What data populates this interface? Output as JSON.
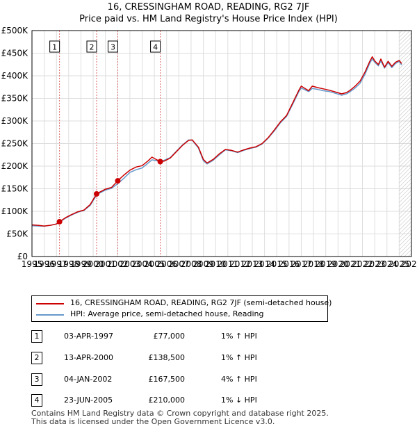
{
  "chart_data": {
    "type": "line",
    "title": "16, CRESSINGHAM ROAD, READING, RG2 7JF",
    "subtitle": "Price paid vs. HM Land Registry's House Price Index (HPI)",
    "xlabel": "",
    "ylabel": "",
    "xlim": [
      1995,
      2026
    ],
    "ylim": [
      0,
      500000
    ],
    "x_ticks": [
      1995,
      1996,
      1997,
      1998,
      1999,
      2000,
      2001,
      2002,
      2003,
      2004,
      2005,
      2006,
      2007,
      2008,
      2009,
      2010,
      2011,
      2012,
      2013,
      2014,
      2015,
      2016,
      2017,
      2018,
      2019,
      2020,
      2021,
      2022,
      2023,
      2024,
      2025,
      2026
    ],
    "y_ticks": [
      {
        "value": 0,
        "label": "£0"
      },
      {
        "value": 50000,
        "label": "£50K"
      },
      {
        "value": 100000,
        "label": "£100K"
      },
      {
        "value": 150000,
        "label": "£150K"
      },
      {
        "value": 200000,
        "label": "£200K"
      },
      {
        "value": 250000,
        "label": "£250K"
      },
      {
        "value": 300000,
        "label": "£300K"
      },
      {
        "value": 350000,
        "label": "£350K"
      },
      {
        "value": 400000,
        "label": "£400K"
      },
      {
        "value": 450000,
        "label": "£450K"
      },
      {
        "value": 500000,
        "label": "£500K"
      }
    ],
    "hatch_from_year": 2025.0,
    "series": [
      {
        "name": "16, CRESSINGHAM ROAD, READING, RG2 7JF (semi-detached house)",
        "color": "#cc0000",
        "points": [
          [
            1995.0,
            70000
          ],
          [
            1995.5,
            69000
          ],
          [
            1996.0,
            67500
          ],
          [
            1996.5,
            69000
          ],
          [
            1997.0,
            72000
          ],
          [
            1997.25,
            77000
          ],
          [
            1997.75,
            86000
          ],
          [
            1998.25,
            93000
          ],
          [
            1998.75,
            99000
          ],
          [
            1999.25,
            103000
          ],
          [
            1999.75,
            115000
          ],
          [
            2000.28,
            138500
          ],
          [
            2000.5,
            142000
          ],
          [
            2001.0,
            149000
          ],
          [
            2001.5,
            153000
          ],
          [
            2002.0,
            167500
          ],
          [
            2002.5,
            180000
          ],
          [
            2003.0,
            191000
          ],
          [
            2003.5,
            198000
          ],
          [
            2004.0,
            201000
          ],
          [
            2004.5,
            212000
          ],
          [
            2004.8,
            220000
          ],
          [
            2005.2,
            214000
          ],
          [
            2005.48,
            210000
          ],
          [
            2005.8,
            211000
          ],
          [
            2006.3,
            218000
          ],
          [
            2006.8,
            232000
          ],
          [
            2007.3,
            246000
          ],
          [
            2007.8,
            257000
          ],
          [
            2008.1,
            258000
          ],
          [
            2008.6,
            242000
          ],
          [
            2009.0,
            215000
          ],
          [
            2009.3,
            207000
          ],
          [
            2009.8,
            215000
          ],
          [
            2010.3,
            227000
          ],
          [
            2010.8,
            237000
          ],
          [
            2011.3,
            235000
          ],
          [
            2011.8,
            231000
          ],
          [
            2012.3,
            236000
          ],
          [
            2012.8,
            240000
          ],
          [
            2013.3,
            243000
          ],
          [
            2013.8,
            250000
          ],
          [
            2014.3,
            263000
          ],
          [
            2014.8,
            280000
          ],
          [
            2015.3,
            298000
          ],
          [
            2015.8,
            312000
          ],
          [
            2016.3,
            340000
          ],
          [
            2016.8,
            368000
          ],
          [
            2017.0,
            377000
          ],
          [
            2017.3,
            372000
          ],
          [
            2017.6,
            367000
          ],
          [
            2017.9,
            377000
          ],
          [
            2018.3,
            374000
          ],
          [
            2018.8,
            371000
          ],
          [
            2019.3,
            368000
          ],
          [
            2019.8,
            364000
          ],
          [
            2020.3,
            360000
          ],
          [
            2020.7,
            363000
          ],
          [
            2021.0,
            368000
          ],
          [
            2021.4,
            377000
          ],
          [
            2021.8,
            388000
          ],
          [
            2022.2,
            408000
          ],
          [
            2022.6,
            432000
          ],
          [
            2022.8,
            442000
          ],
          [
            2023.0,
            433000
          ],
          [
            2023.3,
            425000
          ],
          [
            2023.5,
            437000
          ],
          [
            2023.8,
            419000
          ],
          [
            2024.1,
            432000
          ],
          [
            2024.4,
            421000
          ],
          [
            2024.7,
            430000
          ],
          [
            2025.0,
            434000
          ],
          [
            2025.2,
            427000
          ]
        ]
      },
      {
        "name": "HPI: Average price, semi-detached house, Reading",
        "color": "#6699cc",
        "points": [
          [
            1995.0,
            68000
          ],
          [
            1995.5,
            67500
          ],
          [
            1996.0,
            67000
          ],
          [
            1996.5,
            69000
          ],
          [
            1997.0,
            72000
          ],
          [
            1997.25,
            76000
          ],
          [
            1997.75,
            85000
          ],
          [
            1998.25,
            92000
          ],
          [
            1998.75,
            98000
          ],
          [
            1999.25,
            102000
          ],
          [
            1999.75,
            113000
          ],
          [
            2000.28,
            136000
          ],
          [
            2000.5,
            140000
          ],
          [
            2001.0,
            147000
          ],
          [
            2001.5,
            151000
          ],
          [
            2002.0,
            161000
          ],
          [
            2002.5,
            173000
          ],
          [
            2003.0,
            186000
          ],
          [
            2003.5,
            192000
          ],
          [
            2004.0,
            196000
          ],
          [
            2004.5,
            207000
          ],
          [
            2004.8,
            214000
          ],
          [
            2005.2,
            212000
          ],
          [
            2005.48,
            212000
          ],
          [
            2005.8,
            213000
          ],
          [
            2006.3,
            219000
          ],
          [
            2006.8,
            233000
          ],
          [
            2007.3,
            247000
          ],
          [
            2007.8,
            258000
          ],
          [
            2008.1,
            257000
          ],
          [
            2008.6,
            240000
          ],
          [
            2009.0,
            212000
          ],
          [
            2009.3,
            205000
          ],
          [
            2009.8,
            213000
          ],
          [
            2010.3,
            225000
          ],
          [
            2010.8,
            236000
          ],
          [
            2011.3,
            234000
          ],
          [
            2011.8,
            230000
          ],
          [
            2012.3,
            235000
          ],
          [
            2012.8,
            239000
          ],
          [
            2013.3,
            242000
          ],
          [
            2013.8,
            249000
          ],
          [
            2014.3,
            262000
          ],
          [
            2014.8,
            278000
          ],
          [
            2015.3,
            296000
          ],
          [
            2015.8,
            310000
          ],
          [
            2016.3,
            337000
          ],
          [
            2016.8,
            365000
          ],
          [
            2017.0,
            373000
          ],
          [
            2017.3,
            369000
          ],
          [
            2017.6,
            365000
          ],
          [
            2017.9,
            372000
          ],
          [
            2018.3,
            370000
          ],
          [
            2018.8,
            367000
          ],
          [
            2019.3,
            365000
          ],
          [
            2019.8,
            361000
          ],
          [
            2020.3,
            357000
          ],
          [
            2020.7,
            360000
          ],
          [
            2021.0,
            365000
          ],
          [
            2021.4,
            373000
          ],
          [
            2021.8,
            383000
          ],
          [
            2022.2,
            403000
          ],
          [
            2022.6,
            428000
          ],
          [
            2022.8,
            437000
          ],
          [
            2023.0,
            430000
          ],
          [
            2023.3,
            422000
          ],
          [
            2023.5,
            433000
          ],
          [
            2023.8,
            417000
          ],
          [
            2024.1,
            429000
          ],
          [
            2024.4,
            418000
          ],
          [
            2024.7,
            427000
          ],
          [
            2025.0,
            432000
          ],
          [
            2025.2,
            424000
          ]
        ]
      }
    ],
    "sales": [
      {
        "marker": "1",
        "year": 1997.25,
        "price": 77000
      },
      {
        "marker": "2",
        "year": 2000.28,
        "price": 138500
      },
      {
        "marker": "3",
        "year": 2002.01,
        "price": 167500
      },
      {
        "marker": "4",
        "year": 2005.48,
        "price": 210000
      }
    ]
  },
  "transactions": [
    {
      "marker": "1",
      "date": "03-APR-1997",
      "price": "£77,000",
      "hpi": "1% ↑ HPI"
    },
    {
      "marker": "2",
      "date": "13-APR-2000",
      "price": "£138,500",
      "hpi": "1% ↑ HPI"
    },
    {
      "marker": "3",
      "date": "04-JAN-2002",
      "price": "£167,500",
      "hpi": "4% ↑ HPI"
    },
    {
      "marker": "4",
      "date": "23-JUN-2005",
      "price": "£210,000",
      "hpi": "1% ↓ HPI"
    }
  ],
  "footer": {
    "line1": "Contains HM Land Registry data © Crown copyright and database right 2025.",
    "line2": "This data is licensed under the Open Government Licence v3.0."
  }
}
